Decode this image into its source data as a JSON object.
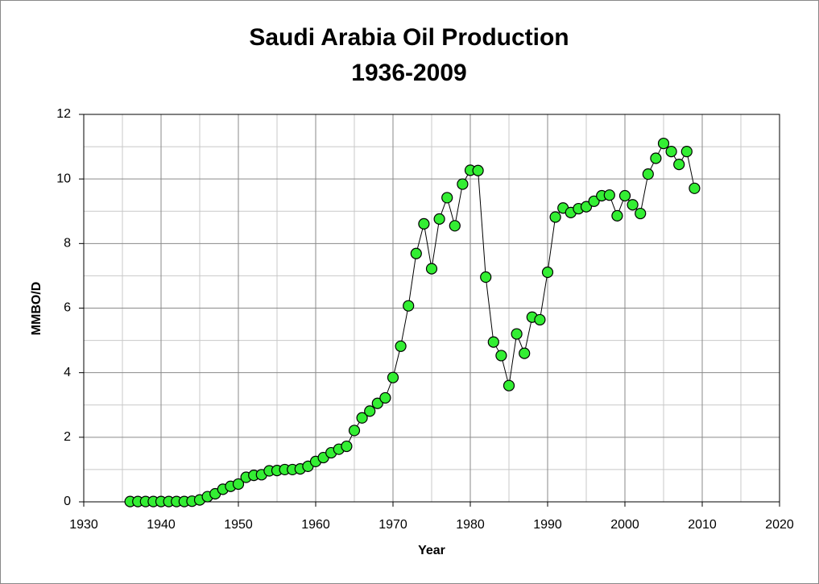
{
  "chart_data": {
    "type": "line",
    "title": "Saudi Arabia Oil Production",
    "subtitle": "1936-2009",
    "x_label": "Year",
    "y_label": "MMBO/D",
    "x": [
      1936,
      1937,
      1938,
      1939,
      1940,
      1941,
      1942,
      1943,
      1944,
      1945,
      1946,
      1947,
      1948,
      1949,
      1950,
      1951,
      1952,
      1953,
      1954,
      1955,
      1956,
      1957,
      1958,
      1959,
      1960,
      1961,
      1962,
      1963,
      1964,
      1965,
      1966,
      1967,
      1968,
      1969,
      1970,
      1971,
      1972,
      1973,
      1974,
      1975,
      1976,
      1977,
      1978,
      1979,
      1980,
      1981,
      1982,
      1983,
      1984,
      1985,
      1986,
      1987,
      1988,
      1989,
      1990,
      1991,
      1992,
      1993,
      1994,
      1995,
      1996,
      1997,
      1998,
      1999,
      2000,
      2001,
      2002,
      2003,
      2004,
      2005,
      2006,
      2007,
      2008,
      2009
    ],
    "values": [
      0.01,
      0.01,
      0.01,
      0.01,
      0.01,
      0.01,
      0.01,
      0.01,
      0.02,
      0.06,
      0.16,
      0.25,
      0.39,
      0.48,
      0.55,
      0.76,
      0.82,
      0.84,
      0.96,
      0.97,
      1.0,
      1.0,
      1.02,
      1.1,
      1.25,
      1.37,
      1.52,
      1.63,
      1.72,
      2.21,
      2.6,
      2.81,
      3.05,
      3.22,
      3.85,
      4.82,
      6.07,
      7.69,
      8.61,
      7.22,
      8.76,
      9.42,
      8.55,
      9.84,
      10.27,
      10.26,
      6.96,
      4.95,
      4.53,
      3.6,
      5.2,
      4.6,
      5.72,
      5.64,
      7.11,
      8.82,
      9.1,
      8.96,
      9.08,
      9.14,
      9.31,
      9.48,
      9.5,
      8.86,
      9.48,
      9.2,
      8.93,
      10.15,
      10.64,
      11.1,
      10.85,
      10.45,
      10.85,
      9.71
    ],
    "marker_color": "#33ee33",
    "line_color": "#000000",
    "xlim": [
      1930,
      2020
    ],
    "xticks": [
      1930,
      1940,
      1950,
      1960,
      1970,
      1980,
      1990,
      2000,
      2010,
      2020
    ],
    "ylim": [
      0,
      12
    ],
    "yticks": [
      0,
      2,
      4,
      6,
      8,
      10,
      12
    ],
    "grid": true
  }
}
